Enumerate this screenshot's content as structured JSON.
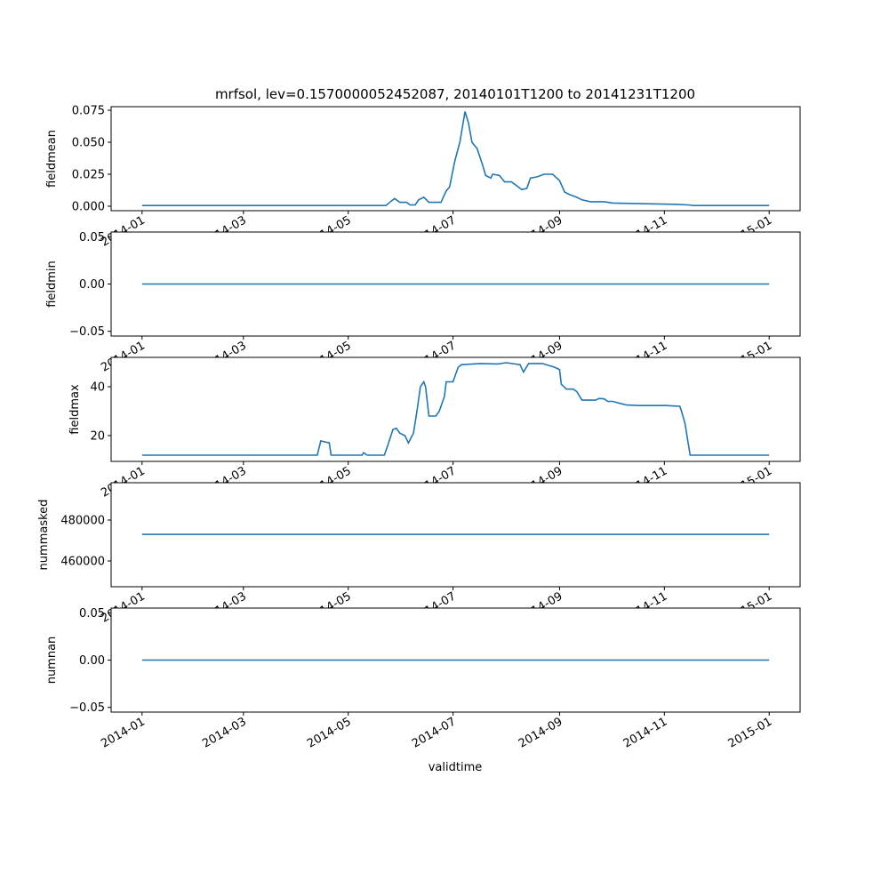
{
  "chart_data": {
    "type": "line",
    "title": "mrfsol, lev=0.1570000052452087, 20140101T1200 to 20141231T1200",
    "xlabel": "validtime",
    "x_units": "days since 2014-01-01",
    "xlim": [
      -18,
      383
    ],
    "xticks": [
      0,
      59,
      120,
      181,
      243,
      304,
      365
    ],
    "xtick_labels": [
      "2014-01",
      "2014-03",
      "2014-05",
      "2014-07",
      "2014-09",
      "2014-11",
      "2015-01"
    ],
    "color": "#1f77b4",
    "grid": false,
    "panels": [
      {
        "ylabel": "fieldmean",
        "ylim": [
          -0.0035,
          0.0778
        ],
        "yticks": [
          0,
          0.025,
          0.05,
          0.075
        ],
        "ytick_labels": [
          "0.000",
          "0.025",
          "0.050",
          "0.075"
        ],
        "points": [
          [
            0,
            0.0005
          ],
          [
            142,
            0.0005
          ],
          [
            145,
            0.004
          ],
          [
            147,
            0.006
          ],
          [
            150,
            0.003
          ],
          [
            154,
            0.003
          ],
          [
            156,
            0.001
          ],
          [
            159,
            0.001
          ],
          [
            161,
            0.005
          ],
          [
            164,
            0.007
          ],
          [
            167,
            0.003
          ],
          [
            171,
            0.003
          ],
          [
            174,
            0.003
          ],
          [
            177,
            0.012
          ],
          [
            179,
            0.015
          ],
          [
            182,
            0.035
          ],
          [
            185,
            0.05
          ],
          [
            188,
            0.074
          ],
          [
            190,
            0.065
          ],
          [
            192,
            0.05
          ],
          [
            195,
            0.045
          ],
          [
            198,
            0.033
          ],
          [
            200,
            0.024
          ],
          [
            203,
            0.022
          ],
          [
            204,
            0.025
          ],
          [
            208,
            0.024
          ],
          [
            211,
            0.019
          ],
          [
            215,
            0.019
          ],
          [
            218,
            0.016
          ],
          [
            221,
            0.013
          ],
          [
            224,
            0.014
          ],
          [
            226,
            0.022
          ],
          [
            230,
            0.023
          ],
          [
            234,
            0.025
          ],
          [
            239,
            0.025
          ],
          [
            243,
            0.02
          ],
          [
            246,
            0.011
          ],
          [
            249,
            0.009
          ],
          [
            253,
            0.007
          ],
          [
            256,
            0.005
          ],
          [
            261,
            0.0035
          ],
          [
            269,
            0.0035
          ],
          [
            274,
            0.0025
          ],
          [
            290,
            0.002
          ],
          [
            310,
            0.0015
          ],
          [
            318,
            0.001
          ],
          [
            321,
            0.0005
          ],
          [
            365,
            0.0005
          ]
        ]
      },
      {
        "ylabel": "fieldmin",
        "ylim": [
          -0.055,
          0.055
        ],
        "yticks": [
          -0.05,
          0,
          0.05
        ],
        "ytick_labels": [
          "−0.05",
          "0.00",
          "0.05"
        ],
        "points": [
          [
            0,
            0
          ],
          [
            365,
            0
          ]
        ]
      },
      {
        "ylabel": "fieldmax",
        "ylim": [
          9.45,
          52
        ],
        "yticks": [
          20,
          40
        ],
        "ytick_labels": [
          "20",
          "40"
        ],
        "points": [
          [
            0,
            12
          ],
          [
            102,
            12
          ],
          [
            104,
            17.8
          ],
          [
            109,
            17
          ],
          [
            110,
            12
          ],
          [
            128,
            12
          ],
          [
            129,
            13
          ],
          [
            131,
            12
          ],
          [
            141,
            12
          ],
          [
            143,
            16
          ],
          [
            146,
            22.5
          ],
          [
            148,
            23
          ],
          [
            150,
            21
          ],
          [
            153,
            20
          ],
          [
            155,
            17
          ],
          [
            158,
            21
          ],
          [
            160,
            30
          ],
          [
            162,
            40
          ],
          [
            164,
            42
          ],
          [
            165,
            40
          ],
          [
            167,
            28
          ],
          [
            171,
            28
          ],
          [
            173,
            30
          ],
          [
            176,
            36
          ],
          [
            177,
            42
          ],
          [
            181,
            42
          ],
          [
            184,
            48
          ],
          [
            186,
            49
          ],
          [
            197,
            49.5
          ],
          [
            207,
            49.3
          ],
          [
            212,
            49.8
          ],
          [
            220,
            49
          ],
          [
            222,
            46
          ],
          [
            225,
            49.5
          ],
          [
            233,
            49.5
          ],
          [
            240,
            48
          ],
          [
            243,
            47
          ],
          [
            244,
            41
          ],
          [
            247,
            39
          ],
          [
            251,
            39
          ],
          [
            253,
            38
          ],
          [
            256,
            34.5
          ],
          [
            264,
            34.5
          ],
          [
            266,
            35.2
          ],
          [
            269,
            35
          ],
          [
            271,
            34
          ],
          [
            274,
            34
          ],
          [
            279,
            33
          ],
          [
            282,
            32.5
          ],
          [
            290,
            32.3
          ],
          [
            305,
            32.3
          ],
          [
            313,
            32
          ],
          [
            314,
            30
          ],
          [
            316,
            25
          ],
          [
            319,
            12
          ],
          [
            365,
            12
          ]
        ]
      },
      {
        "ylabel": "nummasked",
        "ylim": [
          447390,
          498260
        ],
        "yticks": [
          460000,
          480000
        ],
        "ytick_labels": [
          "460000",
          "480000"
        ],
        "points": [
          [
            0,
            473000
          ],
          [
            365,
            473000
          ]
        ]
      },
      {
        "ylabel": "numnan",
        "ylim": [
          -0.055,
          0.055
        ],
        "yticks": [
          -0.05,
          0,
          0.05
        ],
        "ytick_labels": [
          "−0.05",
          "0.00",
          "0.05"
        ],
        "points": [
          [
            0,
            0
          ],
          [
            365,
            0
          ]
        ]
      }
    ]
  }
}
